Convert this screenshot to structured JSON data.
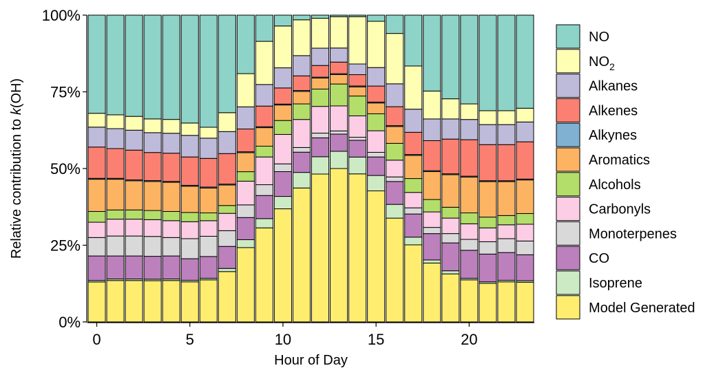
{
  "chart_data": {
    "type": "bar",
    "stacked": "percent",
    "xlabel": "Hour of Day",
    "ylabel": "Relative contribution to k(OH)",
    "ylabel_parts": {
      "prefix": "Relative contribution to ",
      "italic": "k",
      "suffix": "(OH)"
    },
    "x_ticks": [
      0,
      5,
      10,
      15,
      20
    ],
    "x_tick_labels": [
      "0",
      "5",
      "10",
      "15",
      "20"
    ],
    "y_ticks": [
      0,
      25,
      50,
      75,
      100
    ],
    "y_tick_labels": [
      "0%",
      "25%",
      "50%",
      "75%",
      "100%"
    ],
    "ylim": [
      0,
      100
    ],
    "grid": false,
    "legend_position": "right",
    "categories": [
      0,
      1,
      2,
      3,
      4,
      5,
      6,
      7,
      8,
      9,
      10,
      11,
      12,
      13,
      14,
      15,
      16,
      17,
      18,
      19,
      20,
      21,
      22,
      23
    ],
    "series": [
      {
        "name": "Model Generated",
        "color": "#FFED6F",
        "values": [
          13,
          13.5,
          13.5,
          13.5,
          13.5,
          13,
          13.5,
          16,
          23.5,
          30.5,
          36.5,
          43,
          47,
          49,
          48.5,
          42.5,
          34,
          25,
          19,
          15.5,
          13.5,
          12.5,
          13,
          13
        ]
      },
      {
        "name": "Isoprene",
        "color": "#CCEBC5",
        "values": [
          0.5,
          0.5,
          0.5,
          0.5,
          0.5,
          0.5,
          0.5,
          1,
          2.5,
          3,
          4,
          5,
          5.5,
          5.5,
          5.5,
          5,
          4.5,
          2.5,
          1,
          1,
          0.5,
          0.5,
          0.5,
          0.5
        ]
      },
      {
        "name": "CO",
        "color": "#BC80BD",
        "values": [
          8,
          7.5,
          7.5,
          7.5,
          7.5,
          7,
          7,
          7,
          7,
          7.5,
          8,
          6.5,
          6,
          5.5,
          5.5,
          6,
          7.5,
          7.5,
          8.5,
          9,
          9,
          9,
          9,
          8.5
        ]
      },
      {
        "name": "Monoterpenes",
        "color": "#D9D9D9",
        "values": [
          6,
          6.5,
          6.5,
          6.5,
          6,
          6.5,
          6.5,
          5,
          4,
          3.5,
          2.5,
          1.5,
          1.5,
          1,
          1,
          1.5,
          1.5,
          2,
          2,
          3,
          3.5,
          4,
          4.5,
          4.5
        ]
      },
      {
        "name": "Carbonyls",
        "color": "#FCCDE5",
        "values": [
          5,
          5.5,
          5.5,
          5.5,
          5.5,
          5.5,
          5,
          5.5,
          7.5,
          9,
          9.5,
          9,
          8.5,
          8,
          7,
          7,
          5.5,
          5,
          5,
          5,
          5,
          4.5,
          4.5,
          5.5
        ]
      },
      {
        "name": "Alcohols",
        "color": "#B3DE69",
        "values": [
          3.5,
          3,
          3,
          3,
          3,
          3,
          2.5,
          2.5,
          3,
          3.5,
          4.5,
          5,
          5.5,
          7,
          6.5,
          5.5,
          5.5,
          4.5,
          4,
          3.5,
          3.5,
          3.5,
          3,
          3.5
        ]
      },
      {
        "name": "Aromatics",
        "color": "#FDB462",
        "values": [
          10.5,
          10,
          9.5,
          9.5,
          9.5,
          8.5,
          8,
          6.5,
          6,
          6,
          5,
          4,
          3.5,
          3,
          3,
          3.5,
          5.5,
          7.5,
          9,
          10.5,
          11.5,
          11.5,
          11,
          11
        ]
      },
      {
        "name": "Alkynes",
        "color": "#80B1D3",
        "values": [
          0.3,
          0.3,
          0.3,
          0.3,
          0.3,
          0.3,
          0.3,
          0.3,
          0.3,
          0.3,
          0.3,
          0.3,
          0.3,
          0.3,
          0.3,
          0.3,
          0.3,
          0.3,
          0.3,
          0.3,
          0.3,
          0.3,
          0.3,
          0.3
        ]
      },
      {
        "name": "Alkenes",
        "color": "#FB8072",
        "values": [
          10.2,
          9.7,
          9.7,
          9.2,
          9.2,
          9.2,
          9.2,
          9.7,
          7.2,
          6.7,
          5.2,
          4.7,
          3.7,
          3.7,
          3.7,
          5.2,
          6.2,
          7.2,
          9.7,
          11.2,
          11.7,
          11.7,
          11.7,
          12.2
        ]
      },
      {
        "name": "Alkanes",
        "color": "#BEBADA",
        "values": [
          6.5,
          6.5,
          6.5,
          6.5,
          6.5,
          7,
          6.5,
          7,
          7,
          7,
          6.5,
          6.5,
          5.5,
          4.5,
          3.5,
          6,
          7.5,
          7.5,
          7,
          6.5,
          6.5,
          6.5,
          6.5,
          6.5
        ]
      },
      {
        "name": "NO2",
        "color": "#FFFFB3",
        "values": [
          4.5,
          4.5,
          4.5,
          4.5,
          4.5,
          4,
          3.5,
          6,
          10.5,
          14,
          13.5,
          11.5,
          9.5,
          10,
          15.5,
          15,
          16.5,
          14,
          9,
          6.5,
          5,
          4.5,
          4.5,
          4.5
        ]
      },
      {
        "name": "NO",
        "color": "#8DD3C7",
        "values": [
          32,
          32.5,
          33,
          34,
          34,
          35,
          36,
          31,
          18.5,
          8.5,
          3.5,
          1.5,
          1,
          0.5,
          0.5,
          2,
          6,
          16.5,
          24.5,
          27,
          28.5,
          31,
          31,
          30.5
        ]
      }
    ]
  }
}
